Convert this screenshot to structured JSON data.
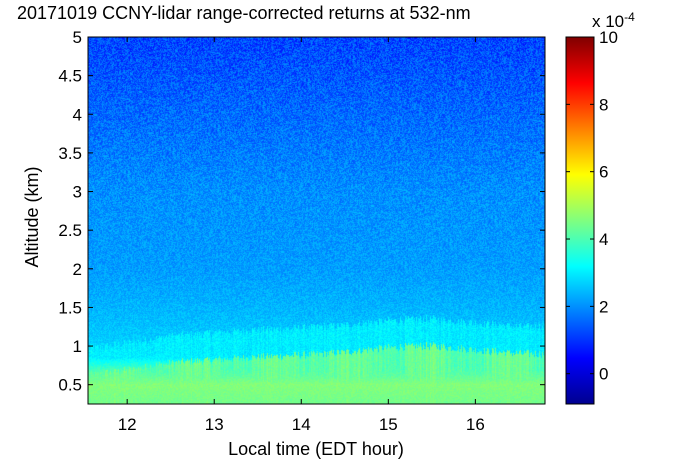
{
  "chart_data": {
    "type": "heatmap",
    "title": "20171019 CCNY-lidar range-corrected returns at 532-nm",
    "xlabel": "Local time (EDT hour)",
    "ylabel": "Altitude (km)",
    "xlim": [
      11.55,
      16.8
    ],
    "ylim": [
      0.25,
      5.0
    ],
    "xticks": [
      12,
      13,
      14,
      15,
      16
    ],
    "yticks": [
      0.5,
      1,
      1.5,
      2,
      2.5,
      3,
      3.5,
      4,
      4.5,
      5
    ],
    "xtick_labels": [
      "12",
      "13",
      "14",
      "15",
      "16"
    ],
    "ytick_labels": [
      "0.5",
      "1",
      "1.5",
      "2",
      "2.5",
      "3",
      "3.5",
      "4",
      "4.5",
      "5"
    ],
    "colormap": "jet",
    "colorbar": {
      "range": [
        -0.9,
        10
      ],
      "ticks": [
        0,
        2,
        4,
        6,
        8,
        10
      ],
      "tick_labels": [
        "0",
        "2",
        "4",
        "6",
        "8",
        "10"
      ],
      "exponent_label": "x 10",
      "exponent_power": "-4"
    },
    "value_profile": {
      "altitude_km": [
        0.25,
        0.5,
        0.7,
        0.85,
        1.0,
        1.5,
        2.0,
        3.0,
        4.0,
        5.0
      ],
      "value": [
        4.4,
        4.6,
        3.9,
        3.0,
        2.7,
        2.4,
        2.15,
        2.0,
        1.6,
        1.2
      ]
    },
    "boundary_layer_top_km": {
      "time": [
        11.55,
        12.0,
        12.5,
        13.0,
        13.5,
        14.0,
        14.5,
        15.0,
        15.5,
        16.0,
        16.5,
        16.8
      ],
      "altitude": [
        0.62,
        0.68,
        0.78,
        0.82,
        0.86,
        0.88,
        0.92,
        0.98,
        1.0,
        0.95,
        0.9,
        0.9
      ]
    }
  }
}
